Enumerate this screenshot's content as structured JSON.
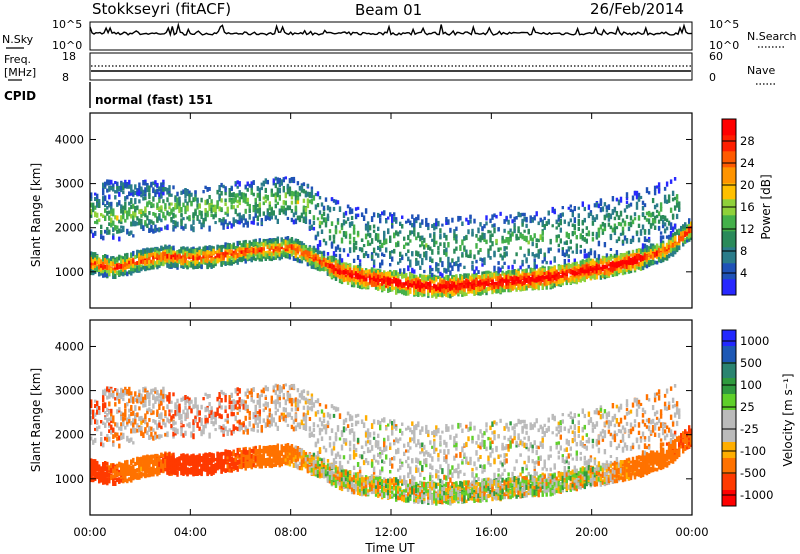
{
  "header": {
    "title": "Stokkseyri (fitACF)",
    "beam": "Beam 01",
    "date": "26/Feb/2014"
  },
  "top_panels": {
    "nsky": {
      "label": "N.Sky",
      "right_label": "N.Search",
      "ticks_left": [
        "10^5",
        "10^0"
      ],
      "ticks_right": [
        "10^5",
        "10^0"
      ]
    },
    "freq": {
      "label_line1": "Freq.",
      "label_line2": "[MHz]",
      "right_label": "Nave",
      "ticks_left": [
        "18",
        "8"
      ],
      "ticks_right": [
        "60",
        "0"
      ]
    },
    "cpid": {
      "label": "CPID",
      "value": "normal (fast) 151"
    }
  },
  "colors": {
    "power_scale": [
      "#2828ff",
      "#1f52b7",
      "#2a7c8a",
      "#2a8a5a",
      "#44b04a",
      "#8fd13a",
      "#ffc000",
      "#ff9400",
      "#ff5a00",
      "#ff1e00",
      "#ff0000"
    ],
    "velocity_scale": [
      "#2228ff",
      "#1d58b5",
      "#2a8470",
      "#2f9a3e",
      "#5fd02a",
      "#bbbbbb",
      "#bbbbbb",
      "#ffae00",
      "#ff7200",
      "#ff3a00",
      "#ff0000"
    ]
  },
  "chart_data": [
    {
      "type": "heatmap",
      "panel": "power",
      "ylabel": "Slant Range [km]",
      "ylim": [
        180,
        4600
      ],
      "yticks": [
        "1000",
        "2000",
        "3000",
        "4000"
      ],
      "xticks": [
        "00:00",
        "04:00",
        "08:00",
        "12:00",
        "16:00",
        "20:00",
        "00:00"
      ],
      "colorbar": {
        "label": "Power [dB]",
        "ticks": [
          "28",
          "24",
          "20",
          "16",
          "12",
          "8",
          "4"
        ],
        "range": [
          0,
          32
        ]
      },
      "series": [
        {
          "x": [
            0.0,
            1.0,
            2.0,
            3.0,
            4.0,
            5.0,
            6.0,
            7.0,
            8.0,
            9.0,
            10.0,
            11.0,
            12.0,
            13.0,
            14.0,
            15.0,
            16.0,
            17.0,
            18.0,
            19.0,
            20.0,
            21.0,
            22.0,
            23.0,
            24.0
          ],
          "echo_center_km": [
            1200,
            1100,
            1250,
            1350,
            1300,
            1350,
            1450,
            1500,
            1550,
            1300,
            1000,
            850,
            780,
            700,
            650,
            700,
            750,
            800,
            850,
            950,
            1050,
            1150,
            1300,
            1500,
            2000
          ]
        }
      ]
    },
    {
      "type": "heatmap",
      "panel": "velocity",
      "ylabel": "Slant Range [km]",
      "ylim": [
        180,
        4600
      ],
      "yticks": [
        "1000",
        "2000",
        "3000",
        "4000"
      ],
      "xticks": [
        "00:00",
        "04:00",
        "08:00",
        "12:00",
        "16:00",
        "20:00",
        "00:00"
      ],
      "xlabel": "Time UT",
      "colorbar": {
        "label": "Velocity [m s⁻¹]",
        "ticks": [
          "1000",
          "500",
          "100",
          "25",
          "-25",
          "-100",
          "-500",
          "-1000"
        ]
      },
      "series": [
        {
          "x": [
            0.0,
            2.0,
            4.0,
            6.0,
            8.0,
            9.0,
            12.0,
            16.0,
            20.0,
            24.0
          ],
          "dominant_velocity": [
            -500,
            -100,
            -500,
            -300,
            -100,
            0,
            0,
            0,
            0,
            -300
          ]
        }
      ]
    }
  ]
}
